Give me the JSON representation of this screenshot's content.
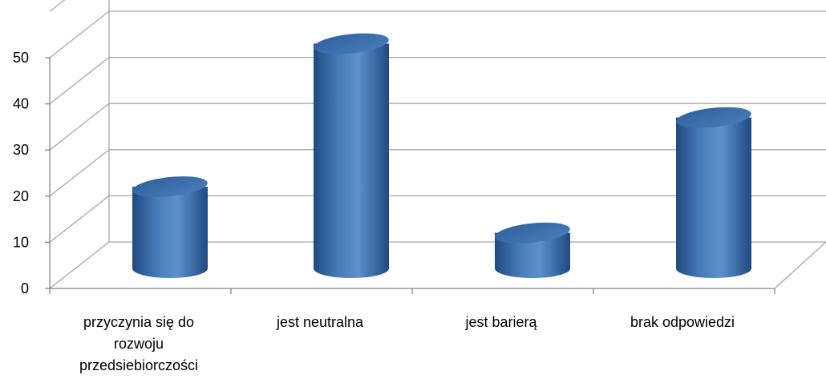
{
  "chart_data": {
    "type": "bar",
    "style": "3d-cylinder",
    "title": "",
    "xlabel": "",
    "ylabel": "",
    "categories": [
      [
        "przyczynia się do",
        "rozwoju",
        "przedsiebiorczości"
      ],
      [
        "jest neutralna"
      ],
      [
        "jest barierą"
      ],
      [
        "brak odpowiedzi"
      ]
    ],
    "values": [
      17,
      48,
      7,
      32
    ],
    "ylim": [
      0,
      50
    ],
    "yticks": [
      0,
      10,
      20,
      30,
      40,
      50
    ],
    "grid": true,
    "legend": "none",
    "colors": {
      "bar": "#4a7ebb",
      "bar_dark": "#1f4a82",
      "bar_light": "#8fb2e3",
      "top": "#3a6db0",
      "grid": "#a6a6a6",
      "axis": "#868686"
    }
  }
}
